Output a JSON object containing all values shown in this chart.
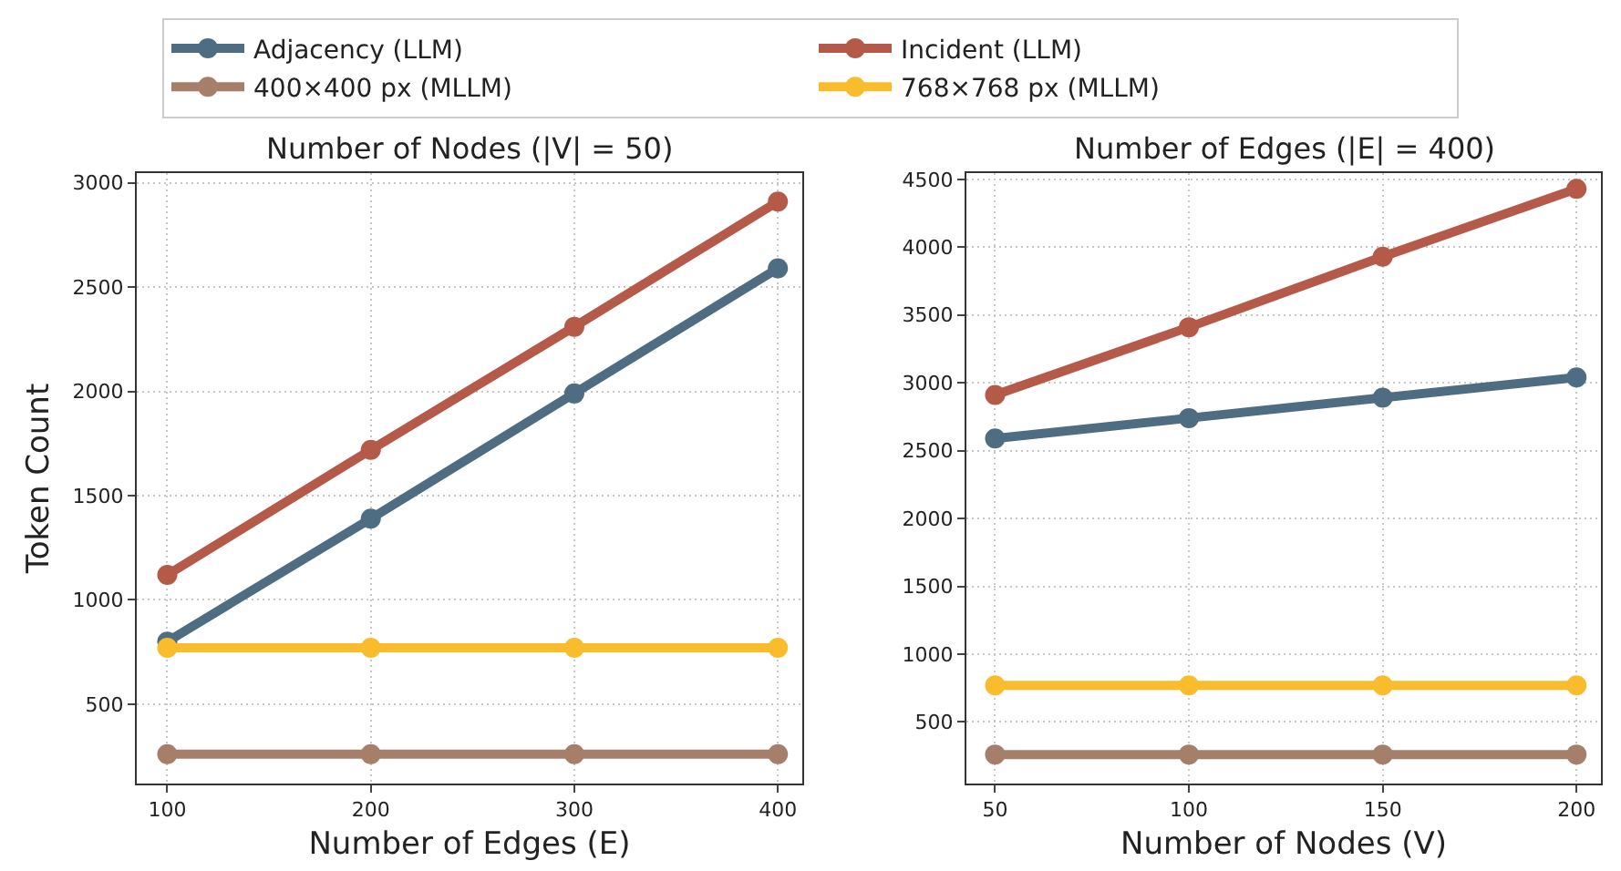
{
  "chart_data": [
    {
      "type": "line",
      "title": "Number of Nodes (|V| = 50)",
      "xlabel": "Number of Edges (E)",
      "ylabel": "Token Count",
      "x": [
        100,
        200,
        300,
        400
      ],
      "xlim": [
        85,
        412
      ],
      "xticks": [
        100,
        200,
        300,
        400
      ],
      "ylim": [
        119,
        3047
      ],
      "yticks": [
        500,
        1000,
        1500,
        2000,
        2500,
        3000
      ],
      "grid": true,
      "legend": "top",
      "marker": "circle",
      "line_style": "solid",
      "series": [
        {
          "name": "Adjacency (LLM)",
          "color": "#4f6d82",
          "values": [
            800,
            1390,
            1990,
            2590
          ]
        },
        {
          "name": "Incident (LLM)",
          "color": "#b55a48",
          "values": [
            1120,
            1720,
            2310,
            2910
          ]
        },
        {
          "name": "400×400 px (MLLM)",
          "color": "#a67f6b",
          "values": [
            260,
            260,
            260,
            260
          ]
        },
        {
          "name": "768×768 px (MLLM)",
          "color": "#f9bc2c",
          "values": [
            770,
            770,
            770,
            770
          ]
        }
      ]
    },
    {
      "type": "line",
      "title": "Number of Edges (|E| = 400)",
      "xlabel": "Number of Nodes (V)",
      "x": [
        50,
        100,
        150,
        200
      ],
      "xlim": [
        42.6,
        206.3
      ],
      "xticks": [
        50,
        100,
        150,
        200
      ],
      "ylim": [
        46,
        4546
      ],
      "yticks": [
        500,
        1000,
        1500,
        2000,
        2500,
        3000,
        3500,
        4000,
        4500
      ],
      "grid": true,
      "legend": "top",
      "marker": "circle",
      "line_style": "solid",
      "series": [
        {
          "name": "Adjacency (LLM)",
          "color": "#4f6d82",
          "values": [
            2590,
            2740,
            2890,
            3040
          ]
        },
        {
          "name": "Incident (LLM)",
          "color": "#b55a48",
          "values": [
            2910,
            3410,
            3930,
            4430
          ]
        },
        {
          "name": "400×400 px (MLLM)",
          "color": "#a67f6b",
          "values": [
            260,
            260,
            260,
            260
          ]
        },
        {
          "name": "768×768 px (MLLM)",
          "color": "#f9bc2c",
          "values": [
            770,
            770,
            770,
            770
          ]
        }
      ]
    }
  ]
}
